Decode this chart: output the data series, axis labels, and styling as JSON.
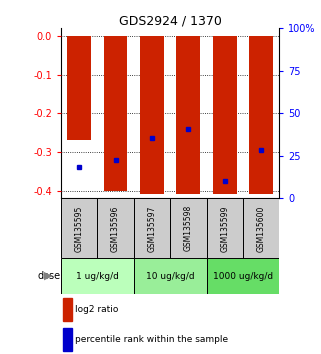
{
  "title": "GDS2924 / 1370",
  "samples": [
    "GSM135595",
    "GSM135596",
    "GSM135597",
    "GSM135598",
    "GSM135599",
    "GSM135600"
  ],
  "bar_tops": [
    0.0,
    0.0,
    0.0,
    0.0,
    0.0,
    0.0
  ],
  "bar_bottoms": [
    -0.27,
    -0.4,
    -0.41,
    -0.41,
    -0.41,
    -0.41
  ],
  "bar_color": "#cc2200",
  "dot_color": "#0000cc",
  "percentile_y": [
    -0.34,
    -0.32,
    -0.265,
    -0.24,
    -0.375,
    -0.295
  ],
  "ylim_left": [
    -0.42,
    0.02
  ],
  "ylim_right": [
    0,
    105
  ],
  "yticks_left": [
    0.0,
    -0.1,
    -0.2,
    -0.3,
    -0.4
  ],
  "yticks_right": [
    0,
    25,
    50,
    75,
    100
  ],
  "dose_labels": [
    "1 ug/kg/d",
    "10 ug/kg/d",
    "1000 ug/kg/d"
  ],
  "dose_colors": [
    "#bbffbb",
    "#99ee99",
    "#66dd66"
  ],
  "dose_label": "dose",
  "legend_red": "log2 ratio",
  "legend_blue": "percentile rank within the sample",
  "bg_sample_color": "#cccccc"
}
